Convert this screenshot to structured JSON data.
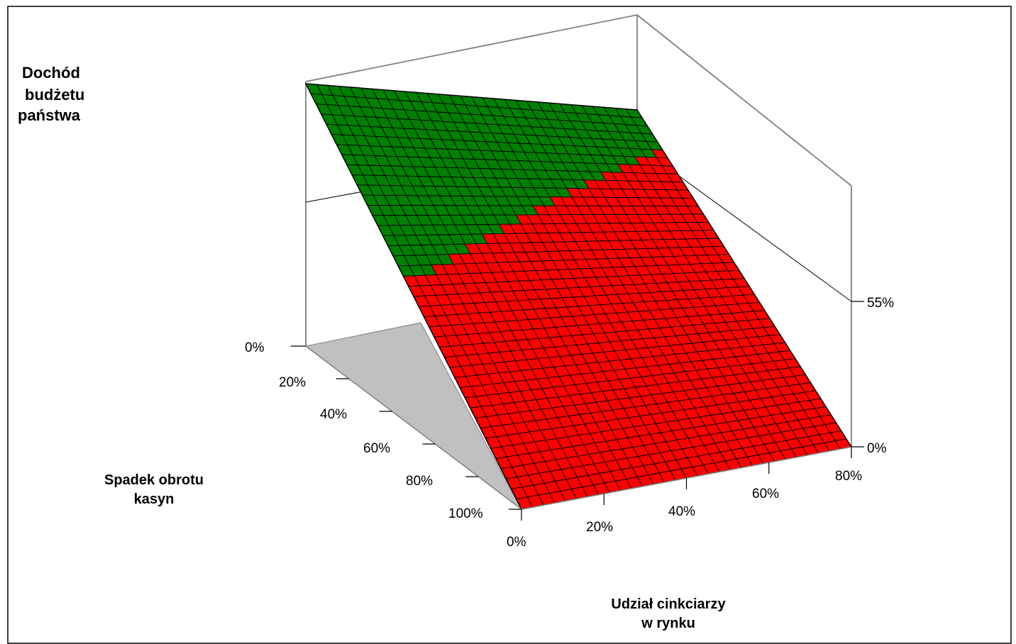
{
  "chart_data": {
    "type": "surface3d",
    "z_title_lines": [
      "Dochód",
      "budżetu",
      "państwa"
    ],
    "y_title_lines": [
      "Spadek obrotu",
      "kasyn"
    ],
    "x_title_lines": [
      "Udział cinkciarzy",
      "w rynku"
    ],
    "z_ticks": [
      "55%",
      "0%"
    ],
    "z_ticks_left": [
      "0%"
    ],
    "y_ticks": [
      "0%",
      "20%",
      "40%",
      "60%",
      "80%",
      "100%"
    ],
    "x_ticks": [
      "0%",
      "20%",
      "40%",
      "60%",
      "80%"
    ],
    "x_range": [
      0,
      80
    ],
    "y_range": [
      0,
      100
    ],
    "z_max_label": 55,
    "surface": {
      "description_colors": {
        "positive": "#008000",
        "negative": "#ff0000",
        "floor": "#c0c0c0"
      },
      "corner_z_percent": {
        "x0_y0": 64,
        "x80_y0": 64,
        "x0_y100": 0,
        "x80_y100": 0
      },
      "grid_divisions_x": 30,
      "grid_divisions_y": 42
    }
  }
}
